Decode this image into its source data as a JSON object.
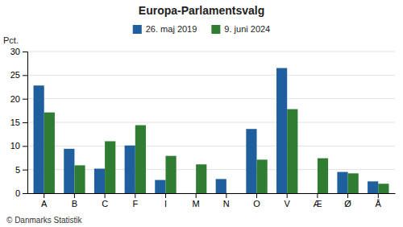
{
  "chart_data": {
    "type": "bar",
    "title": "Europa-Parlamentsvalg",
    "ylabel": "Pct.",
    "annotations": [
      "© Danmarks Statistik"
    ],
    "categories": [
      "A",
      "B",
      "C",
      "F",
      "I",
      "M",
      "N",
      "O",
      "V",
      "Æ",
      "Ø",
      "Å"
    ],
    "series": [
      {
        "name": "26. maj 2019",
        "color": "#1f5f9e",
        "values": [
          22.8,
          9.4,
          5.2,
          10.1,
          2.8,
          0.0,
          3.0,
          13.6,
          26.5,
          0.0,
          4.5,
          2.5
        ]
      },
      {
        "name": "9. juni 2024",
        "color": "#2e7d32",
        "values": [
          17.1,
          5.9,
          11.0,
          14.4,
          7.9,
          6.1,
          0.0,
          7.1,
          17.8,
          7.4,
          4.2,
          2.0
        ]
      }
    ],
    "ylim": [
      0,
      30
    ],
    "yticks": [
      0,
      5,
      10,
      15,
      20,
      25,
      30
    ],
    "grid": true,
    "legend": "top"
  }
}
